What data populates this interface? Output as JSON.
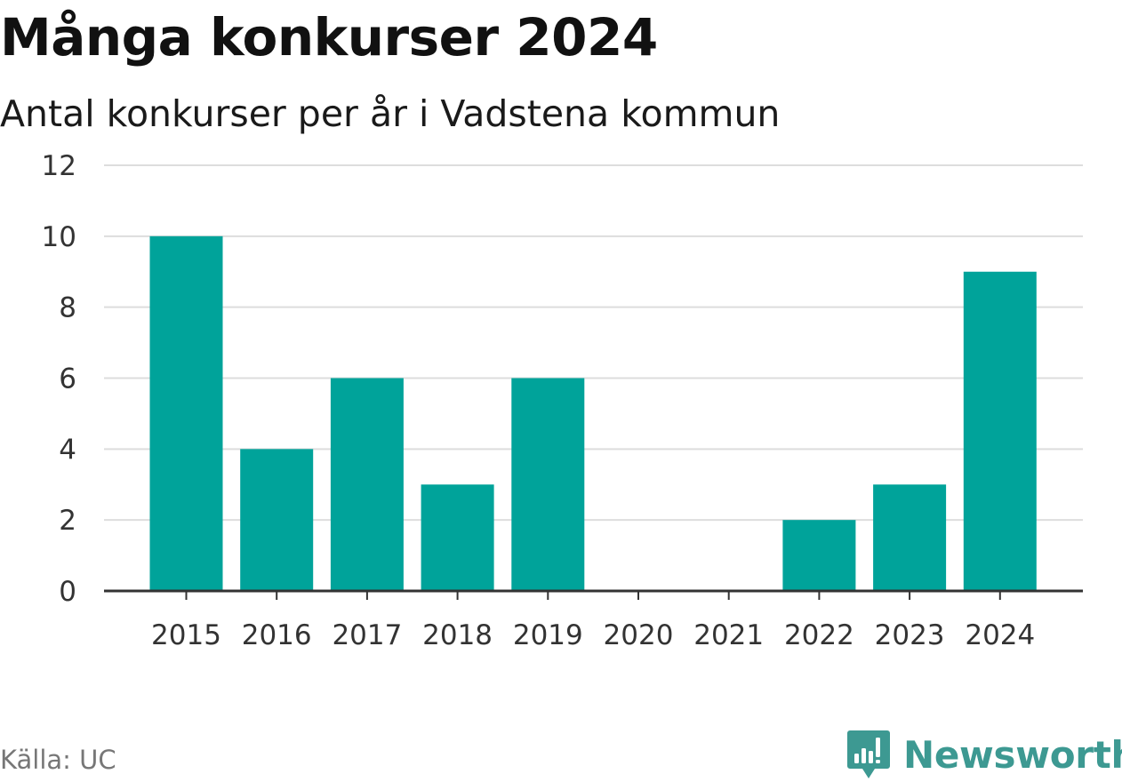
{
  "header": {
    "title": "Många konkurser 2024",
    "subtitle": "Antal konkurser per år i Vadstena kommun"
  },
  "footer": {
    "source": "Källa: UC",
    "brand": "Newsworthy",
    "brand_icon": "newsworthy-logo-icon"
  },
  "colors": {
    "bar": "#00a39a",
    "grid": "#dddddd",
    "axis": "#333333",
    "brand": "#3d9992"
  },
  "chart_data": {
    "type": "bar",
    "title": "Många konkurser 2024",
    "subtitle": "Antal konkurser per år i Vadstena kommun",
    "xlabel": "",
    "ylabel": "",
    "categories": [
      "2015",
      "2016",
      "2017",
      "2018",
      "2019",
      "2020",
      "2021",
      "2022",
      "2023",
      "2024"
    ],
    "values": [
      10,
      4,
      6,
      3,
      6,
      0,
      0,
      2,
      3,
      9
    ],
    "ylim": [
      0,
      12
    ],
    "yticks": [
      0,
      2,
      4,
      6,
      8,
      10,
      12
    ],
    "grid": true,
    "legend": "none"
  }
}
